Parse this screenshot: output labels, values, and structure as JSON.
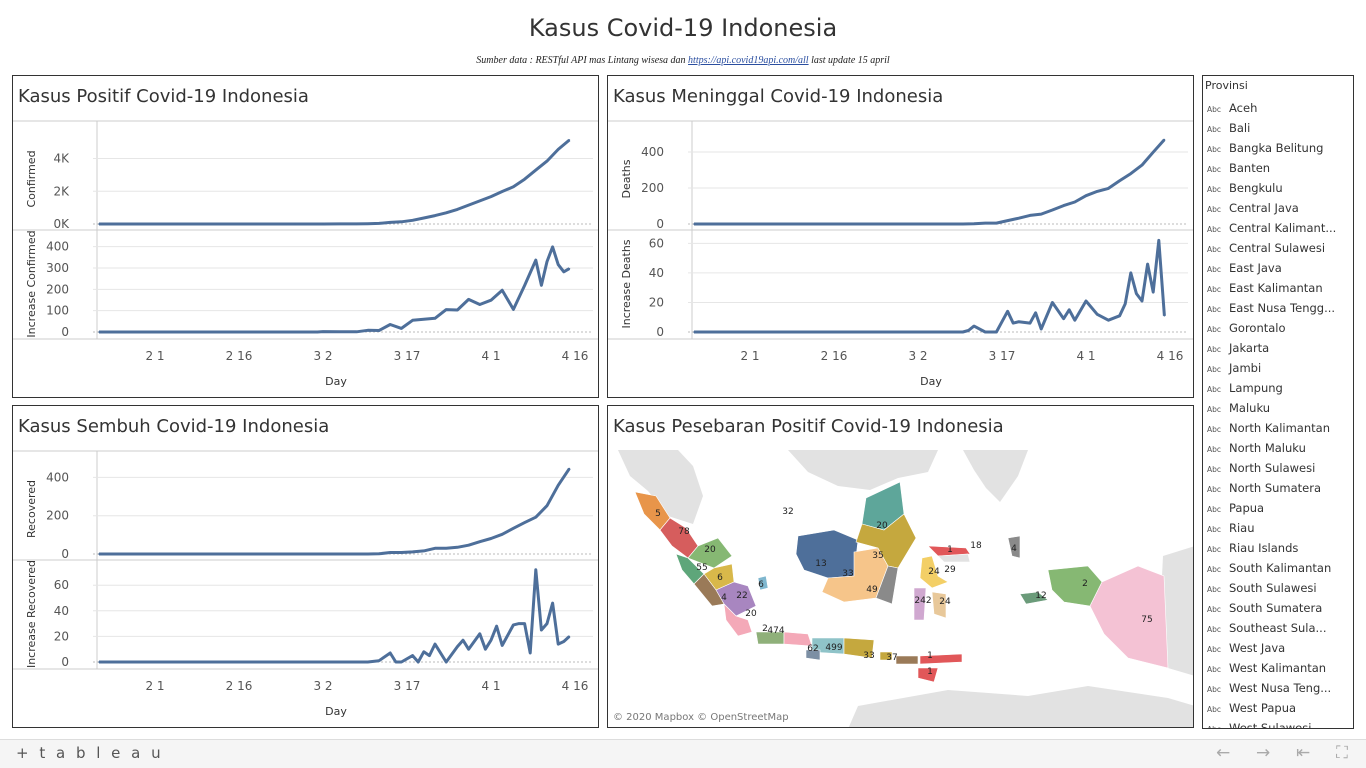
{
  "title": "Kasus Covid-19 Indonesia",
  "source": {
    "prefix": "Sumber data : RESTful API mas Lintang wisesa dan ",
    "link": "https://api.covid19api.com/all",
    "suffix": "   last update 15 april"
  },
  "panels": {
    "positif": {
      "title": "Kasus Positif Covid-19 Indonesia",
      "top_ylabel": "Confirmed",
      "bottom_ylabel": "Increase Confirmed",
      "top_ticks": [
        "4K",
        "2K",
        "0K"
      ],
      "bottom_ticks": [
        "400",
        "300",
        "200",
        "100",
        "0"
      ]
    },
    "meninggal": {
      "title": "Kasus Meninggal Covid-19 Indonesia",
      "top_ylabel": "Deaths",
      "bottom_ylabel": "Increase Deaths",
      "top_ticks": [
        "400",
        "200",
        "0"
      ],
      "bottom_ticks": [
        "60",
        "40",
        "20",
        "0"
      ]
    },
    "sembuh": {
      "title": "Kasus Sembuh Covid-19 Indonesia",
      "top_ylabel": "Recovered",
      "bottom_ylabel": "Increase Recovered",
      "top_ticks": [
        "400",
        "200",
        "0"
      ],
      "bottom_ticks": [
        "60",
        "40",
        "20",
        "0"
      ]
    },
    "peta": {
      "title": "Kasus Pesebaran Positif Covid-19 Indonesia",
      "credit": "© 2020 Mapbox © OpenStreetMap"
    }
  },
  "x_ticks": [
    "2 1",
    "2 16",
    "3 2",
    "3 17",
    "4 1",
    "4 16"
  ],
  "x_label": "Day",
  "chart_data": [
    {
      "type": "line",
      "name": "positif",
      "xlabel": "Day",
      "ylabel": "Confirmed",
      "x": [
        "1/22",
        "1/29",
        "2/5",
        "2/12",
        "2/19",
        "2/26",
        "3/1",
        "3/2",
        "3/5",
        "3/8",
        "3/10",
        "3/12",
        "3/14",
        "3/16",
        "3/18",
        "3/20",
        "3/22",
        "3/24",
        "3/26",
        "3/28",
        "3/30",
        "4/1",
        "4/3",
        "4/5",
        "4/7",
        "4/9",
        "4/11",
        "4/13",
        "4/15"
      ],
      "values": [
        0,
        0,
        0,
        0,
        0,
        0,
        0,
        2,
        4,
        6,
        19,
        34,
        96,
        134,
        227,
        369,
        514,
        686,
        893,
        1155,
        1414,
        1677,
        1986,
        2273,
        2738,
        3293,
        3842,
        4557,
        5136
      ],
      "ylim": [
        0,
        5500
      ]
    },
    {
      "type": "line",
      "name": "positif-increase",
      "ylabel": "Increase Confirmed",
      "x": [
        "1/22",
        "2/5",
        "2/19",
        "3/1",
        "3/2",
        "3/5",
        "3/8",
        "3/10",
        "3/12",
        "3/14",
        "3/16",
        "3/18",
        "3/20",
        "3/22",
        "3/24",
        "3/26",
        "3/28",
        "3/30",
        "4/1",
        "4/3",
        "4/5",
        "4/7",
        "4/9",
        "4/10",
        "4/11",
        "4/12",
        "4/13",
        "4/14",
        "4/15"
      ],
      "values": [
        0,
        0,
        0,
        0,
        2,
        1,
        1,
        8,
        7,
        35,
        17,
        55,
        60,
        64,
        105,
        103,
        153,
        129,
        149,
        196,
        106,
        218,
        337,
        219,
        330,
        399,
        316,
        282,
        297
      ],
      "ylim": [
        0,
        450
      ]
    },
    {
      "type": "line",
      "name": "meninggal",
      "ylabel": "Deaths",
      "x": [
        "1/22",
        "2/19",
        "3/10",
        "3/12",
        "3/14",
        "3/16",
        "3/18",
        "3/20",
        "3/22",
        "3/24",
        "3/26",
        "3/28",
        "3/30",
        "4/1",
        "4/3",
        "4/5",
        "4/7",
        "4/9",
        "4/11",
        "4/13",
        "4/15"
      ],
      "values": [
        0,
        0,
        0,
        1,
        5,
        5,
        19,
        32,
        48,
        55,
        78,
        102,
        122,
        157,
        181,
        198,
        240,
        280,
        327,
        399,
        469
      ],
      "ylim": [
        0,
        500
      ]
    },
    {
      "type": "line",
      "name": "meninggal-increase",
      "ylabel": "Increase Deaths",
      "x": [
        "1/22",
        "3/10",
        "3/11",
        "3/12",
        "3/14",
        "3/16",
        "3/18",
        "3/19",
        "3/20",
        "3/22",
        "3/23",
        "3/24",
        "3/26",
        "3/28",
        "3/29",
        "3/30",
        "4/1",
        "4/3",
        "4/5",
        "4/7",
        "4/8",
        "4/9",
        "4/10",
        "4/11",
        "4/12",
        "4/13",
        "4/14",
        "4/15"
      ],
      "values": [
        0,
        0,
        1,
        4,
        0,
        0,
        14,
        6,
        7,
        6,
        13,
        2,
        20,
        9,
        15,
        8,
        21,
        12,
        8,
        11,
        19,
        40,
        26,
        21,
        46,
        27,
        62,
        11
      ],
      "ylim": [
        0,
        65
      ]
    },
    {
      "type": "line",
      "name": "sembuh",
      "ylabel": "Recovered",
      "x": [
        "1/22",
        "2/19",
        "3/10",
        "3/12",
        "3/14",
        "3/16",
        "3/18",
        "3/20",
        "3/22",
        "3/24",
        "3/26",
        "3/28",
        "3/30",
        "4/1",
        "4/3",
        "4/5",
        "4/7",
        "4/9",
        "4/11",
        "4/13",
        "4/15"
      ],
      "values": [
        0,
        0,
        0,
        1,
        8,
        8,
        11,
        16,
        30,
        30,
        35,
        46,
        64,
        81,
        103,
        134,
        164,
        192,
        252,
        359,
        446
      ],
      "ylim": [
        0,
        470
      ]
    },
    {
      "type": "line",
      "name": "sembuh-increase",
      "ylabel": "Increase Recovered",
      "x": [
        "1/22",
        "3/10",
        "3/12",
        "3/14",
        "3/15",
        "3/16",
        "3/18",
        "3/19",
        "3/20",
        "3/21",
        "3/22",
        "3/24",
        "3/26",
        "3/27",
        "3/28",
        "3/30",
        "3/31",
        "4/1",
        "4/2",
        "4/3",
        "4/5",
        "4/6",
        "4/7",
        "4/8",
        "4/9",
        "4/10",
        "4/11",
        "4/12",
        "4/13",
        "4/14",
        "4/15"
      ],
      "values": [
        0,
        0,
        1,
        7,
        0,
        0,
        5,
        0,
        8,
        5,
        14,
        0,
        12,
        17,
        10,
        22,
        10,
        17,
        28,
        13,
        29,
        30,
        30,
        7,
        72,
        25,
        30,
        46,
        14,
        16,
        20
      ],
      "ylim": [
        0,
        75
      ]
    }
  ],
  "map": {
    "labels": [
      "5",
      "78",
      "20",
      "55",
      "6",
      "4",
      "22",
      "20",
      "2",
      "474",
      "6",
      "32",
      "20",
      "35",
      "13",
      "33",
      "49",
      "1",
      "18",
      "4",
      "24",
      "29",
      "242",
      "24",
      "2",
      "12",
      "75",
      "499",
      "62",
      "33",
      "37",
      "1",
      "1"
    ]
  },
  "filter": {
    "title": "Provinsi",
    "abc_label": "Abc",
    "items": [
      "Aceh",
      "Bali",
      "Bangka Belitung",
      "Banten",
      "Bengkulu",
      "Central Java",
      "Central Kalimant...",
      "Central Sulawesi",
      "East Java",
      "East Kalimantan",
      "East Nusa Tengg...",
      "Gorontalo",
      "Jakarta",
      "Jambi",
      "Lampung",
      "Maluku",
      "North Kalimantan",
      "North Maluku",
      "North Sulawesi",
      "North Sumatera",
      "Papua",
      "Riau",
      "Riau Islands",
      "South Kalimantan",
      "South Sulawesi",
      "South Sumatera",
      "Southeast Sula...",
      "West Java",
      "West Kalimantan",
      "West Nusa Teng...",
      "West Papua",
      "West Sulawesi"
    ]
  },
  "footer": {
    "logo": "+ t a b l e a u",
    "nav": [
      "←",
      "→",
      "⇤",
      "⛶"
    ]
  },
  "colors": {
    "line": "#4e6f9a",
    "gridline": "#e6e6e6",
    "sea": "#ffffff",
    "land": "#e2e2e2"
  }
}
